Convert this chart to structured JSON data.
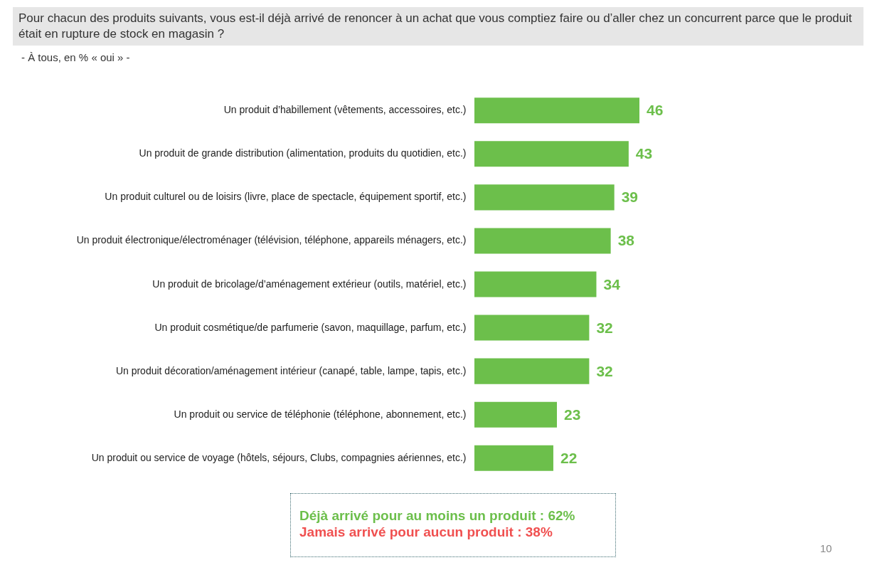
{
  "chart_data": {
    "type": "bar",
    "orientation": "horizontal",
    "title": "Pour chacun des produits suivants, vous est-il déjà arrivé de renoncer à un achat que vous comptiez faire ou d’aller chez un concurrent parce que le produit était en rupture de stock en magasin ?",
    "subtitle": "- À tous, en % « oui » -",
    "categories": [
      "Un produit d’habillement (vêtements, accessoires, etc.)",
      "Un produit de grande distribution (alimentation, produits du quotidien, etc.)",
      "Un produit culturel ou de loisirs (livre, place de spectacle, équipement sportif, etc.)",
      "Un produit électronique/électroménager (télévision, téléphone, appareils ménagers, etc.)",
      "Un produit de bricolage/d’aménagement extérieur (outils, matériel, etc.)",
      "Un produit cosmétique/de parfumerie (savon, maquillage, parfum, etc.)",
      "Un produit décoration/aménagement intérieur (canapé, table, lampe, tapis, etc.)",
      "Un produit ou service de téléphonie (téléphone, abonnement, etc.)",
      "Un produit ou service de voyage (hôtels, séjours, Clubs, compagnies aériennes, etc.)"
    ],
    "values": [
      46,
      43,
      39,
      38,
      34,
      32,
      32,
      23,
      22
    ],
    "color": "#6cbf4b",
    "data_labels": true,
    "annotations": [
      "Déjà arrivé pour au moins un produit : 62%",
      "Jamais arrivé pour aucun produit : 38%",
      "10"
    ]
  }
}
